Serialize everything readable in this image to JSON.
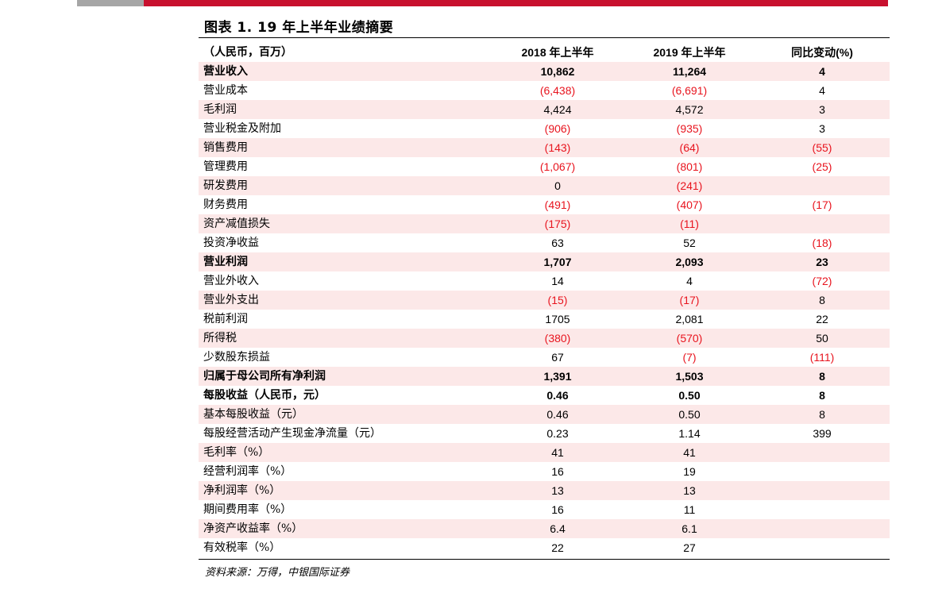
{
  "title": "图表 1. 19 年上半年业绩摘要",
  "header": {
    "label": "（人民币，百万）",
    "col1": "2018 年上半年",
    "col2": "2019 年上半年",
    "col3": "同比变动(%)"
  },
  "rows": [
    {
      "label": "营业收入",
      "v1": "10,862",
      "v2": "11,264",
      "v3": "4",
      "bold": true
    },
    {
      "label": "营业成本",
      "v1": "(6,438)",
      "v2": "(6,691)",
      "v3": "4"
    },
    {
      "label": "毛利润",
      "v1": "4,424",
      "v2": "4,572",
      "v3": "3"
    },
    {
      "label": "营业税金及附加",
      "v1": "(906)",
      "v2": "(935)",
      "v3": "3"
    },
    {
      "label": "销售费用",
      "v1": "(143)",
      "v2": "(64)",
      "v3": "(55)"
    },
    {
      "label": "管理费用",
      "v1": "(1,067)",
      "v2": "(801)",
      "v3": "(25)"
    },
    {
      "label": "研发费用",
      "v1": "0",
      "v2": "(241)",
      "v3": ""
    },
    {
      "label": "财务费用",
      "v1": "(491)",
      "v2": "(407)",
      "v3": "(17)"
    },
    {
      "label": "资产减值损失",
      "v1": "(175)",
      "v2": "(11)",
      "v3": ""
    },
    {
      "label": "投资净收益",
      "v1": "63",
      "v2": "52",
      "v3": "(18)"
    },
    {
      "label": "营业利润",
      "v1": "1,707",
      "v2": "2,093",
      "v3": "23",
      "bold": true
    },
    {
      "label": "营业外收入",
      "v1": "14",
      "v2": "4",
      "v3": "(72)"
    },
    {
      "label": "营业外支出",
      "v1": "(15)",
      "v2": "(17)",
      "v3": "8"
    },
    {
      "label": "税前利润",
      "v1": "1705",
      "v2": "2,081",
      "v3": "22"
    },
    {
      "label": "所得税",
      "v1": "(380)",
      "v2": "(570)",
      "v3": "50"
    },
    {
      "label": "少数股东损益",
      "v1": "67",
      "v2": "(7)",
      "v3": "(111)"
    },
    {
      "label": "归属于母公司所有净利润",
      "v1": "1,391",
      "v2": "1,503",
      "v3": "8",
      "bold": true
    },
    {
      "label": "每股收益（人民币，元）",
      "v1": "0.46",
      "v2": "0.50",
      "v3": "8",
      "bold": true
    },
    {
      "label": "基本每股收益（元）",
      "v1": "0.46",
      "v2": "0.50",
      "v3": "8"
    },
    {
      "label": "每股经营活动产生现金净流量（元）",
      "v1": "0.23",
      "v2": "1.14",
      "v3": "399"
    },
    {
      "label": "毛利率（%）",
      "v1": "41",
      "v2": "41",
      "v3": ""
    },
    {
      "label": "经营利润率（%）",
      "v1": "16",
      "v2": "19",
      "v3": ""
    },
    {
      "label": "净利润率（%）",
      "v1": "13",
      "v2": "13",
      "v3": ""
    },
    {
      "label": "期间费用率（%）",
      "v1": "16",
      "v2": "11",
      "v3": ""
    },
    {
      "label": "净资产收益率（%）",
      "v1": "6.4",
      "v2": "6.1",
      "v3": ""
    },
    {
      "label": "有效税率（%）",
      "v1": "22",
      "v2": "27",
      "v3": ""
    }
  ],
  "source": "资料来源：万得，中银国际证券",
  "colors": {
    "accent_red": "#c8102e",
    "accent_gray": "#a6a6a6",
    "negative_text": "#e8141e",
    "shade": "#fce8e8"
  }
}
